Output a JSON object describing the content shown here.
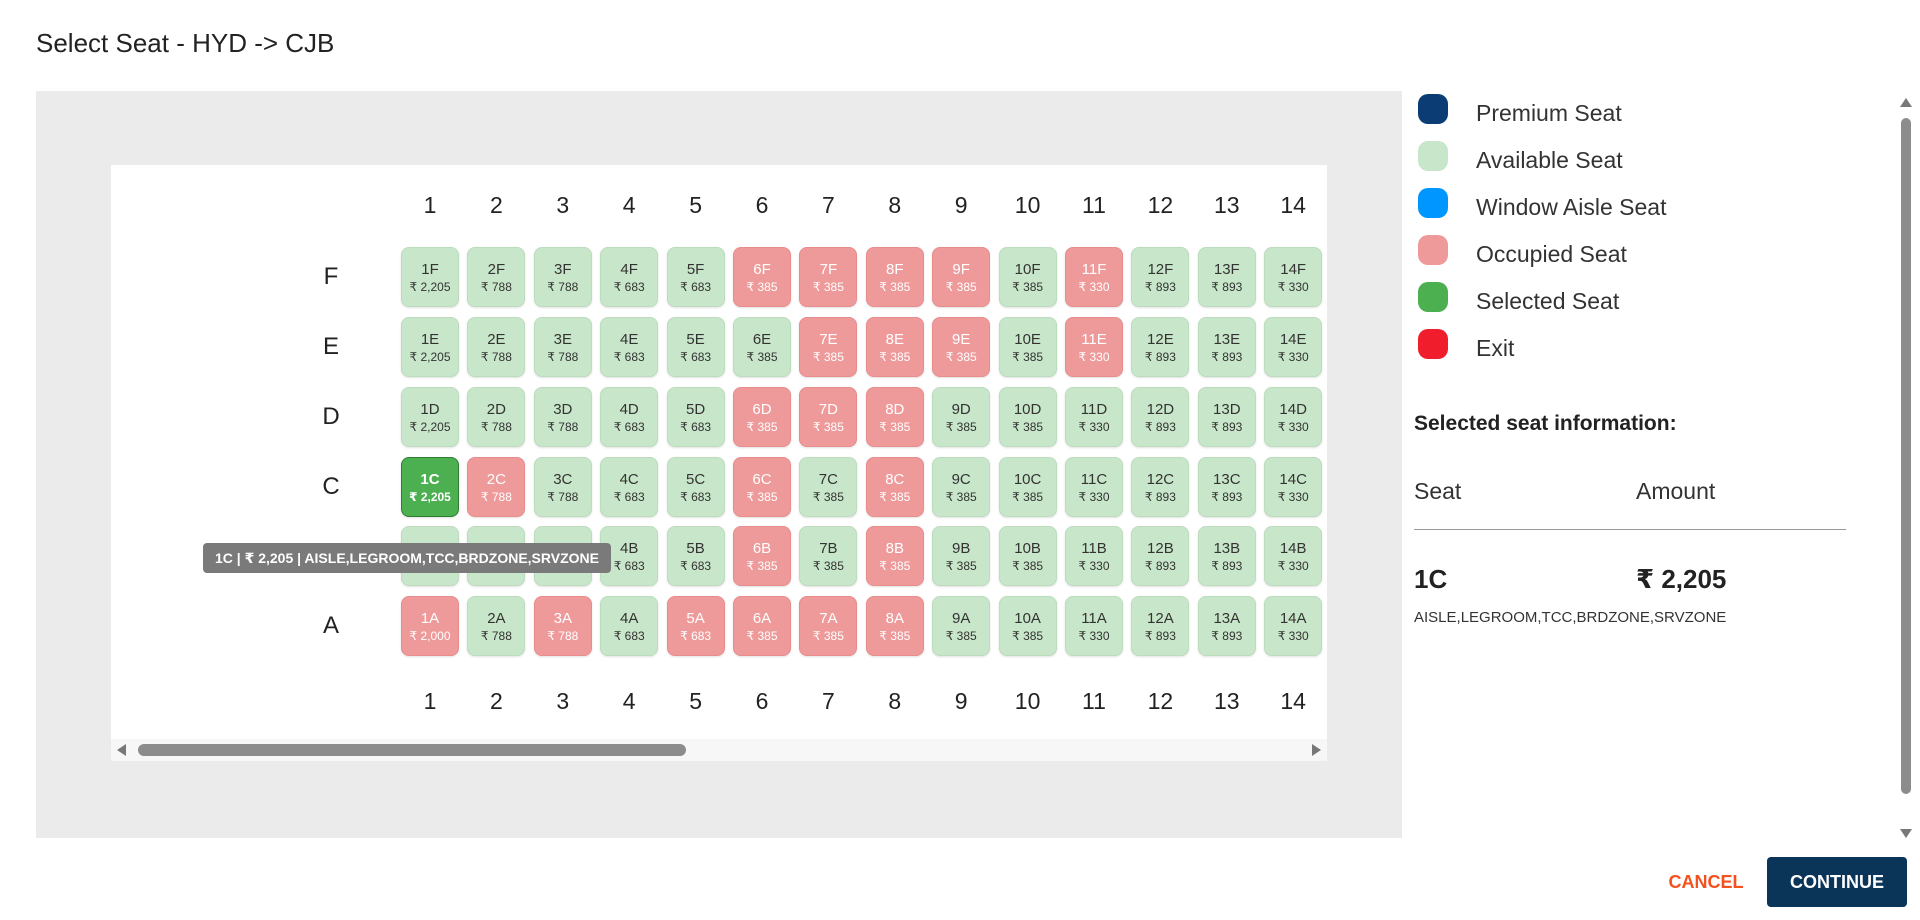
{
  "header": {
    "title": "Select Seat - HYD -> CJB"
  },
  "seat_map": {
    "columns": [
      "1",
      "2",
      "3",
      "4",
      "5",
      "6",
      "7",
      "8",
      "9",
      "10",
      "11",
      "12",
      "13",
      "14"
    ],
    "rows": [
      {
        "label": "F",
        "seats": [
          {
            "code": "1F",
            "price": "₹ 2,205",
            "status": "available"
          },
          {
            "code": "2F",
            "price": "₹ 788",
            "status": "available"
          },
          {
            "code": "3F",
            "price": "₹ 788",
            "status": "available"
          },
          {
            "code": "4F",
            "price": "₹ 683",
            "status": "available"
          },
          {
            "code": "5F",
            "price": "₹ 683",
            "status": "available"
          },
          {
            "code": "6F",
            "price": "₹ 385",
            "status": "occupied"
          },
          {
            "code": "7F",
            "price": "₹ 385",
            "status": "occupied"
          },
          {
            "code": "8F",
            "price": "₹ 385",
            "status": "occupied"
          },
          {
            "code": "9F",
            "price": "₹ 385",
            "status": "occupied"
          },
          {
            "code": "10F",
            "price": "₹ 385",
            "status": "available"
          },
          {
            "code": "11F",
            "price": "₹ 330",
            "status": "occupied"
          },
          {
            "code": "12F",
            "price": "₹ 893",
            "status": "available"
          },
          {
            "code": "13F",
            "price": "₹ 893",
            "status": "available"
          },
          {
            "code": "14F",
            "price": "₹ 330",
            "status": "available"
          }
        ]
      },
      {
        "label": "E",
        "seats": [
          {
            "code": "1E",
            "price": "₹ 2,205",
            "status": "available"
          },
          {
            "code": "2E",
            "price": "₹ 788",
            "status": "available"
          },
          {
            "code": "3E",
            "price": "₹ 788",
            "status": "available"
          },
          {
            "code": "4E",
            "price": "₹ 683",
            "status": "available"
          },
          {
            "code": "5E",
            "price": "₹ 683",
            "status": "available"
          },
          {
            "code": "6E",
            "price": "₹ 385",
            "status": "available"
          },
          {
            "code": "7E",
            "price": "₹ 385",
            "status": "occupied"
          },
          {
            "code": "8E",
            "price": "₹ 385",
            "status": "occupied"
          },
          {
            "code": "9E",
            "price": "₹ 385",
            "status": "occupied"
          },
          {
            "code": "10E",
            "price": "₹ 385",
            "status": "available"
          },
          {
            "code": "11E",
            "price": "₹ 330",
            "status": "occupied"
          },
          {
            "code": "12E",
            "price": "₹ 893",
            "status": "available"
          },
          {
            "code": "13E",
            "price": "₹ 893",
            "status": "available"
          },
          {
            "code": "14E",
            "price": "₹ 330",
            "status": "available"
          }
        ]
      },
      {
        "label": "D",
        "seats": [
          {
            "code": "1D",
            "price": "₹ 2,205",
            "status": "available"
          },
          {
            "code": "2D",
            "price": "₹ 788",
            "status": "available"
          },
          {
            "code": "3D",
            "price": "₹ 788",
            "status": "available"
          },
          {
            "code": "4D",
            "price": "₹ 683",
            "status": "available"
          },
          {
            "code": "5D",
            "price": "₹ 683",
            "status": "available"
          },
          {
            "code": "6D",
            "price": "₹ 385",
            "status": "occupied"
          },
          {
            "code": "7D",
            "price": "₹ 385",
            "status": "occupied"
          },
          {
            "code": "8D",
            "price": "₹ 385",
            "status": "occupied"
          },
          {
            "code": "9D",
            "price": "₹ 385",
            "status": "available"
          },
          {
            "code": "10D",
            "price": "₹ 385",
            "status": "available"
          },
          {
            "code": "11D",
            "price": "₹ 330",
            "status": "available"
          },
          {
            "code": "12D",
            "price": "₹ 893",
            "status": "available"
          },
          {
            "code": "13D",
            "price": "₹ 893",
            "status": "available"
          },
          {
            "code": "14D",
            "price": "₹ 330",
            "status": "available"
          }
        ]
      },
      {
        "label": "C",
        "seats": [
          {
            "code": "1C",
            "price": "₹ 2,205",
            "status": "selected"
          },
          {
            "code": "2C",
            "price": "₹ 788",
            "status": "occupied"
          },
          {
            "code": "3C",
            "price": "₹ 788",
            "status": "available"
          },
          {
            "code": "4C",
            "price": "₹ 683",
            "status": "available"
          },
          {
            "code": "5C",
            "price": "₹ 683",
            "status": "available"
          },
          {
            "code": "6C",
            "price": "₹ 385",
            "status": "occupied"
          },
          {
            "code": "7C",
            "price": "₹ 385",
            "status": "available"
          },
          {
            "code": "8C",
            "price": "₹ 385",
            "status": "occupied"
          },
          {
            "code": "9C",
            "price": "₹ 385",
            "status": "available"
          },
          {
            "code": "10C",
            "price": "₹ 385",
            "status": "available"
          },
          {
            "code": "11C",
            "price": "₹ 330",
            "status": "available"
          },
          {
            "code": "12C",
            "price": "₹ 893",
            "status": "available"
          },
          {
            "code": "13C",
            "price": "₹ 893",
            "status": "available"
          },
          {
            "code": "14C",
            "price": "₹ 330",
            "status": "available"
          }
        ]
      },
      {
        "label": "",
        "seats": [
          {
            "code": "1B",
            "price": "₹ 2,205",
            "status": "available"
          },
          {
            "code": "2B",
            "price": "₹ 788",
            "status": "available"
          },
          {
            "code": "3B",
            "price": "₹ 788",
            "status": "available"
          },
          {
            "code": "4B",
            "price": "₹ 683",
            "status": "available"
          },
          {
            "code": "5B",
            "price": "₹ 683",
            "status": "available"
          },
          {
            "code": "6B",
            "price": "₹ 385",
            "status": "occupied"
          },
          {
            "code": "7B",
            "price": "₹ 385",
            "status": "available"
          },
          {
            "code": "8B",
            "price": "₹ 385",
            "status": "occupied"
          },
          {
            "code": "9B",
            "price": "₹ 385",
            "status": "available"
          },
          {
            "code": "10B",
            "price": "₹ 385",
            "status": "available"
          },
          {
            "code": "11B",
            "price": "₹ 330",
            "status": "available"
          },
          {
            "code": "12B",
            "price": "₹ 893",
            "status": "available"
          },
          {
            "code": "13B",
            "price": "₹ 893",
            "status": "available"
          },
          {
            "code": "14B",
            "price": "₹ 330",
            "status": "available"
          }
        ]
      },
      {
        "label": "A",
        "seats": [
          {
            "code": "1A",
            "price": "₹ 2,000",
            "status": "occupied"
          },
          {
            "code": "2A",
            "price": "₹ 788",
            "status": "available"
          },
          {
            "code": "3A",
            "price": "₹ 788",
            "status": "occupied"
          },
          {
            "code": "4A",
            "price": "₹ 683",
            "status": "available"
          },
          {
            "code": "5A",
            "price": "₹ 683",
            "status": "occupied"
          },
          {
            "code": "6A",
            "price": "₹ 385",
            "status": "occupied"
          },
          {
            "code": "7A",
            "price": "₹ 385",
            "status": "occupied"
          },
          {
            "code": "8A",
            "price": "₹ 385",
            "status": "occupied"
          },
          {
            "code": "9A",
            "price": "₹ 385",
            "status": "available"
          },
          {
            "code": "10A",
            "price": "₹ 385",
            "status": "available"
          },
          {
            "code": "11A",
            "price": "₹ 330",
            "status": "available"
          },
          {
            "code": "12A",
            "price": "₹ 893",
            "status": "available"
          },
          {
            "code": "13A",
            "price": "₹ 893",
            "status": "available"
          },
          {
            "code": "14A",
            "price": "₹ 330",
            "status": "available"
          }
        ]
      }
    ],
    "tooltip": "1C | ₹ 2,205 | AISLE,LEGROOM,TCC,BRDZONE,SRVZONE"
  },
  "legend": [
    {
      "label": "Premium Seat",
      "color": "#0b3c73"
    },
    {
      "label": "Available Seat",
      "color": "#c8e6c9"
    },
    {
      "label": "Window Aisle Seat",
      "color": "#0096ff"
    },
    {
      "label": "Occupied Seat",
      "color": "#ef9a9a"
    },
    {
      "label": "Selected Seat",
      "color": "#4caf50"
    },
    {
      "label": "Exit",
      "color": "#f01e2c"
    }
  ],
  "selected_info": {
    "heading": "Selected seat information:",
    "seat_header": "Seat",
    "amount_header": "Amount",
    "seat": "1C",
    "amount": "₹ 2,205",
    "tags": "AISLE,LEGROOM,TCC,BRDZONE,SRVZONE"
  },
  "actions": {
    "cancel": "CANCEL",
    "continue": "CONTINUE"
  }
}
